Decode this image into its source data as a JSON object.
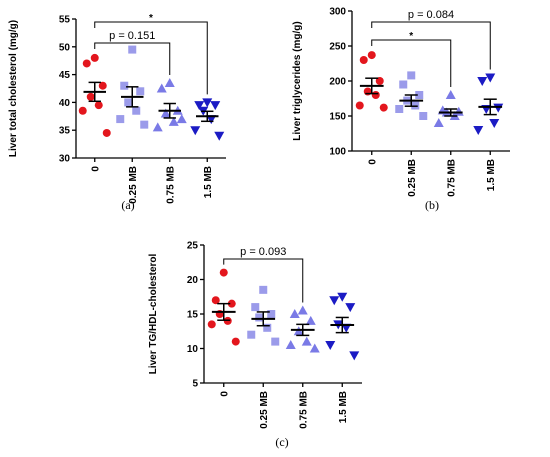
{
  "chart_data": [
    {
      "type": "dot",
      "y_label": "Liver total cholesterol (mg/g)",
      "caption": "(a)",
      "categories": [
        "0",
        "0.25 MB",
        "0.75 MB",
        "1.5 MB"
      ],
      "colors": [
        "#e3161d",
        "#9b9bea",
        "#7a7ae6",
        "#1b1bc4"
      ],
      "markers": [
        "circle",
        "square",
        "triangle-up",
        "triangle-down"
      ],
      "points": [
        [
          48,
          47,
          43,
          41,
          39.5,
          38.5,
          34.5
        ],
        [
          49.5,
          43,
          42,
          40,
          38.5,
          37,
          36
        ],
        [
          43.5,
          42.5,
          38.5,
          38,
          36.5,
          35.5,
          37
        ],
        [
          40,
          39.5,
          39.5,
          38.5,
          37,
          35,
          34
        ]
      ],
      "means": [
        41.9,
        41,
        38.5,
        37.5
      ],
      "sems": [
        1.7,
        1.8,
        1.3,
        0.9
      ],
      "ylim": [
        30,
        55
      ],
      "yticks": [
        30,
        35,
        40,
        45,
        50,
        55
      ],
      "brackets": [
        {
          "from": "0",
          "to": "0.75 MB",
          "label": "p = 0.151"
        },
        {
          "from": "0",
          "to": "1.5 MB",
          "label": "*"
        }
      ]
    },
    {
      "type": "dot",
      "y_label": "Liver triglycerides (mg/g)",
      "caption": "(b)",
      "categories": [
        "0",
        "0.25 MB",
        "0.75 MB",
        "1.5 MB"
      ],
      "colors": [
        "#e3161d",
        "#9b9bea",
        "#7a7ae6",
        "#1b1bc4"
      ],
      "markers": [
        "circle",
        "square",
        "triangle-up",
        "triangle-down"
      ],
      "points": [
        [
          237,
          230,
          200,
          185,
          180,
          165,
          162
        ],
        [
          208,
          195,
          180,
          172,
          165,
          160,
          150
        ],
        [
          180,
          158,
          156,
          155,
          150,
          140
        ],
        [
          205,
          200,
          162,
          160,
          140,
          130
        ]
      ],
      "means": [
        193,
        172,
        155,
        163
      ],
      "sems": [
        11,
        8,
        5,
        11
      ],
      "ylim": [
        100,
        300
      ],
      "yticks": [
        100,
        150,
        200,
        250,
        300
      ],
      "brackets": [
        {
          "from": "0",
          "to": "0.75 MB",
          "label": "*"
        },
        {
          "from": "0",
          "to": "1.5 MB",
          "label": "p = 0.084"
        }
      ]
    },
    {
      "type": "dot",
      "y_label": "Liver TG/HDL-cholesterol",
      "caption": "(c)",
      "categories": [
        "0",
        "0.25 MB",
        "0.75 MB",
        "1.5 MB"
      ],
      "colors": [
        "#e3161d",
        "#9b9bea",
        "#7a7ae6",
        "#1b1bc4"
      ],
      "markers": [
        "circle",
        "square",
        "triangle-up",
        "triangle-down"
      ],
      "points": [
        [
          21,
          17,
          16.5,
          15,
          14,
          13.5,
          11
        ],
        [
          18.5,
          16,
          15,
          14.5,
          13,
          12,
          11
        ],
        [
          15.5,
          15,
          14,
          12.5,
          11,
          10.5,
          10
        ],
        [
          17.5,
          17,
          16,
          13.5,
          13,
          10.5,
          9
        ]
      ],
      "means": [
        15.3,
        14.3,
        12.7,
        13.4
      ],
      "sems": [
        1.2,
        1.0,
        0.8,
        1.1
      ],
      "ylim": [
        5,
        25
      ],
      "yticks": [
        5,
        10,
        15,
        20,
        25
      ],
      "brackets": [
        {
          "from": "0",
          "to": "0.75 MB",
          "label": "p = 0.093"
        }
      ]
    }
  ]
}
